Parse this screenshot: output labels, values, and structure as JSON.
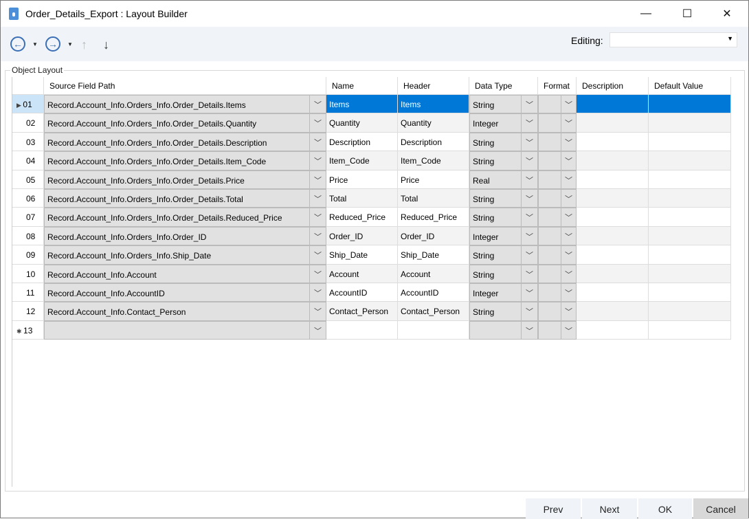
{
  "window": {
    "title": "Order_Details_Export : Layout Builder",
    "minimize": "—",
    "maximize": "☐",
    "close": "✕"
  },
  "toolbar": {
    "back": "←",
    "forward": "→",
    "up": "↑",
    "down": "↓",
    "editing_label": "Editing:",
    "editing_value": ""
  },
  "group_label": "Object Layout",
  "columns": [
    "Source Field Path",
    "Name",
    "Header",
    "Data Type",
    "Format",
    "Description",
    "Default Value"
  ],
  "rows": [
    {
      "num": "01",
      "path": "Record.Account_Info.Orders_Info.Order_Details.Items",
      "name": "Items",
      "header": "Items",
      "type": "String"
    },
    {
      "num": "02",
      "path": "Record.Account_Info.Orders_Info.Order_Details.Quantity",
      "name": "Quantity",
      "header": "Quantity",
      "type": "Integer"
    },
    {
      "num": "03",
      "path": "Record.Account_Info.Orders_Info.Order_Details.Description",
      "name": "Description",
      "header": "Description",
      "type": "String"
    },
    {
      "num": "04",
      "path": "Record.Account_Info.Orders_Info.Order_Details.Item_Code",
      "name": "Item_Code",
      "header": "Item_Code",
      "type": "String"
    },
    {
      "num": "05",
      "path": "Record.Account_Info.Orders_Info.Order_Details.Price",
      "name": "Price",
      "header": "Price",
      "type": "Real"
    },
    {
      "num": "06",
      "path": "Record.Account_Info.Orders_Info.Order_Details.Total",
      "name": "Total",
      "header": "Total",
      "type": "String"
    },
    {
      "num": "07",
      "path": "Record.Account_Info.Orders_Info.Order_Details.Reduced_Price",
      "name": "Reduced_Price",
      "header": "Reduced_Price",
      "type": "String"
    },
    {
      "num": "08",
      "path": "Record.Account_Info.Orders_Info.Order_ID",
      "name": "Order_ID",
      "header": "Order_ID",
      "type": "Integer"
    },
    {
      "num": "09",
      "path": "Record.Account_Info.Orders_Info.Ship_Date",
      "name": "Ship_Date",
      "header": "Ship_Date",
      "type": "String"
    },
    {
      "num": "10",
      "path": "Record.Account_Info.Account",
      "name": "Account",
      "header": "Account",
      "type": "String"
    },
    {
      "num": "11",
      "path": "Record.Account_Info.AccountID",
      "name": "AccountID",
      "header": "AccountID",
      "type": "Integer"
    },
    {
      "num": "12",
      "path": "Record.Account_Info.Contact_Person",
      "name": "Contact_Person",
      "header": "Contact_Person",
      "type": "String"
    },
    {
      "num": "13",
      "path": "",
      "name": "",
      "header": "",
      "type": ""
    }
  ],
  "selected_row": "01",
  "buttons": {
    "prev": "Prev",
    "next": "Next",
    "ok": "OK",
    "cancel": "Cancel"
  }
}
